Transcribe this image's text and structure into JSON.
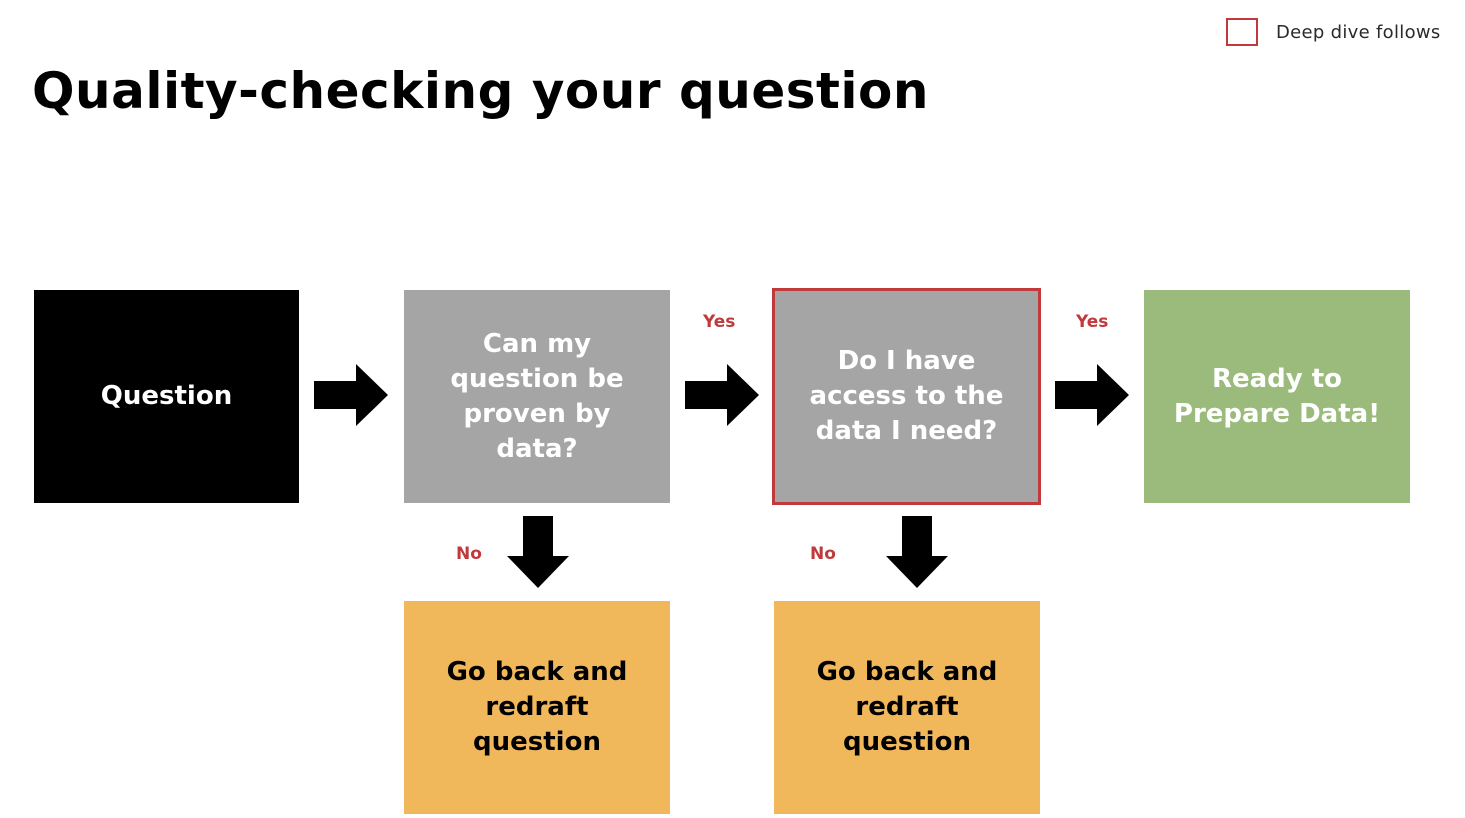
{
  "legend": {
    "label": "Deep dive follows",
    "box_color": "#c0393b"
  },
  "title": "Quality-checking your question",
  "nodes": {
    "question": "Question",
    "provable": "Can my\nquestion be\nproven by\ndata?",
    "access": "Do I have\naccess to the\ndata I need?",
    "ready": "Ready to\nPrepare Data!",
    "redraft_1": "Go back and\nredraft\nquestion",
    "redraft_2": "Go back and\nredraft\nquestion"
  },
  "edges": {
    "yes_1": "Yes",
    "yes_2": "Yes",
    "no_1": "No",
    "no_2": "No"
  },
  "colors": {
    "black": "#000000",
    "gray": "#a5a5a5",
    "green": "#9bbb7c",
    "orange": "#f1b75b",
    "accent_red": "#c0393b"
  }
}
